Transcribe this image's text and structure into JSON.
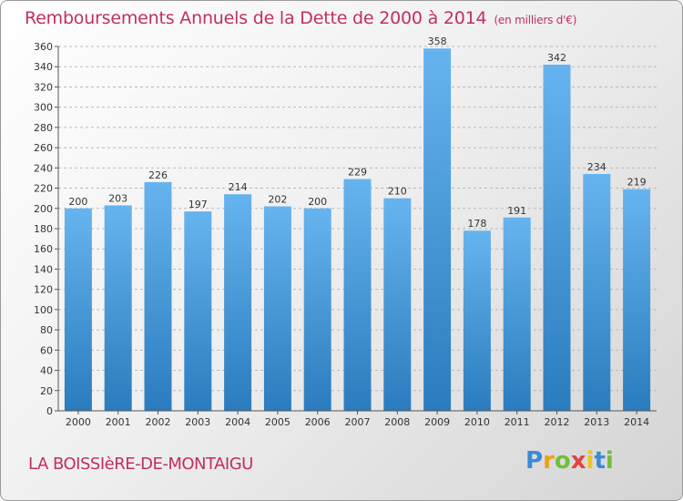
{
  "header": {
    "title": "Remboursements Annuels de la Dette de 2000 à 2014",
    "unit": "(en milliers d'€)"
  },
  "footer": {
    "commune": "LA BOISSIèRE-DE-MONTAIGU",
    "logo_text": "Proxiti"
  },
  "colors": {
    "title": "#c0305a",
    "bar_light": "#62b0ec",
    "bar_dark": "#2b7fc0",
    "grid": "#b8b8b8"
  },
  "chart_data": {
    "type": "bar",
    "title": "Remboursements Annuels de la Dette de 2000 à 2014",
    "xlabel": "",
    "ylabel": "",
    "categories": [
      "2000",
      "2001",
      "2002",
      "2003",
      "2004",
      "2005",
      "2006",
      "2007",
      "2008",
      "2009",
      "2010",
      "2011",
      "2012",
      "2013",
      "2014"
    ],
    "values": [
      200,
      203,
      226,
      197,
      214,
      202,
      200,
      229,
      210,
      358,
      178,
      191,
      342,
      234,
      219
    ],
    "ylim": [
      0,
      360
    ],
    "yticks": [
      0,
      20,
      40,
      60,
      80,
      100,
      120,
      140,
      160,
      180,
      200,
      220,
      240,
      260,
      280,
      300,
      320,
      340,
      360
    ],
    "grid": true,
    "data_labels": true
  }
}
